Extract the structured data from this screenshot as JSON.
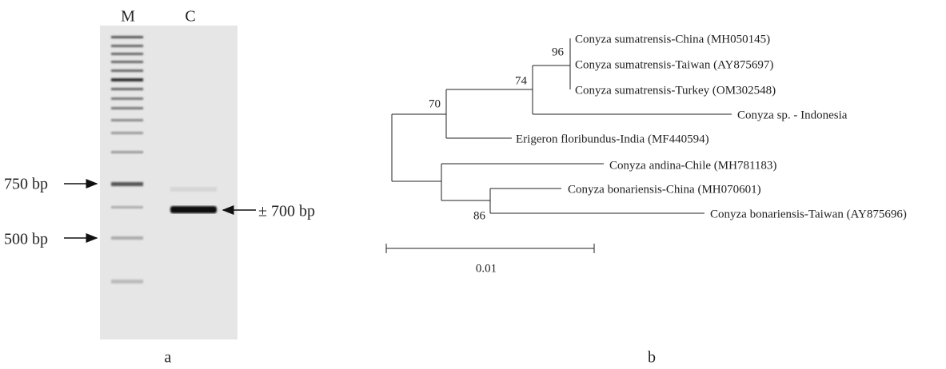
{
  "gel": {
    "lanes": [
      "M",
      "C"
    ],
    "markers": [
      "750 bp",
      "500 bp"
    ],
    "product": "± 700 bp",
    "panel": "a"
  },
  "tree": {
    "leaves": [
      "Conyza sumatrensis-China (MH050145)",
      "Conyza sumatrensis-Taiwan (AY875697)",
      "Conyza sumatrensis-Turkey (OM302548)",
      "Conyza sp. - Indonesia",
      "Erigeron floribundus-India (MF440594)",
      "Conyza andina-Chile (MH781183)",
      "Conyza bonariensis-China (MH070601)",
      "Conyza bonariensis-Taiwan (AY875696)"
    ],
    "bootstrap": [
      "96",
      "74",
      "70",
      "86"
    ],
    "scale": "0.01",
    "panel": "b"
  }
}
